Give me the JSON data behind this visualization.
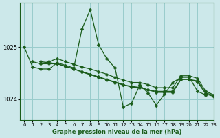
{
  "bg_color": "#cce8ea",
  "grid_color": "#99cccc",
  "line_color": "#1a5c1a",
  "title": "Graphe pression niveau de la mer (hPa)",
  "xlim": [
    -0.5,
    23
  ],
  "ylim": [
    1023.6,
    1025.85
  ],
  "yticks": [
    1024,
    1025
  ],
  "xticks": [
    0,
    1,
    2,
    3,
    4,
    5,
    6,
    7,
    8,
    9,
    10,
    11,
    12,
    13,
    14,
    15,
    16,
    17,
    18,
    19,
    20,
    21,
    22,
    23
  ],
  "series0_x": [
    0,
    1,
    2,
    3,
    4,
    5,
    6,
    7,
    8,
    9,
    10,
    11,
    12,
    13,
    14,
    15,
    16,
    17,
    18,
    19,
    20,
    21,
    22
  ],
  "series0_y": [
    1025.0,
    1024.62,
    1024.58,
    1024.58,
    1024.7,
    1024.65,
    1024.6,
    1025.35,
    1025.72,
    1025.05,
    1024.78,
    1024.6,
    1023.85,
    1023.92,
    1024.27,
    1024.12,
    1023.88,
    1024.1,
    1024.32,
    1024.42,
    1024.42,
    1024.15,
    1024.08
  ],
  "series1_x": [
    1,
    2,
    3,
    4,
    5,
    6,
    7,
    8,
    9,
    10,
    11,
    12,
    13,
    14,
    15,
    16,
    17,
    18,
    19,
    20,
    21,
    22,
    23
  ],
  "series1_y": [
    1024.72,
    1024.68,
    1024.72,
    1024.78,
    1024.72,
    1024.67,
    1024.62,
    1024.58,
    1024.53,
    1024.48,
    1024.42,
    1024.37,
    1024.32,
    1024.32,
    1024.28,
    1024.22,
    1024.22,
    1024.22,
    1024.45,
    1024.45,
    1024.4,
    1024.15,
    1024.08
  ],
  "series2_x": [
    2,
    3,
    4,
    5,
    6,
    7,
    8,
    9,
    10,
    11,
    12,
    13,
    14,
    15,
    16,
    17,
    18,
    19,
    20,
    21,
    22,
    23
  ],
  "series2_y": [
    1024.68,
    1024.68,
    1024.68,
    1024.63,
    1024.58,
    1024.53,
    1024.48,
    1024.43,
    1024.38,
    1024.33,
    1024.28,
    1024.23,
    1024.23,
    1024.18,
    1024.13,
    1024.13,
    1024.13,
    1024.38,
    1024.38,
    1024.33,
    1024.1,
    1024.05
  ],
  "series3_x": [
    2,
    3,
    4,
    5,
    6,
    7,
    8,
    9,
    10,
    11,
    12,
    13,
    14,
    15,
    16,
    17,
    18,
    19,
    20,
    21,
    22,
    23
  ],
  "series3_y": [
    1024.72,
    1024.7,
    1024.68,
    1024.63,
    1024.58,
    1024.52,
    1024.47,
    1024.42,
    1024.37,
    1024.32,
    1024.27,
    1024.25,
    1024.22,
    1024.18,
    1024.15,
    1024.15,
    1024.15,
    1024.38,
    1024.38,
    1024.35,
    1024.12,
    1024.07
  ],
  "marker": "D",
  "markersize": 2.5,
  "linewidth": 0.9
}
